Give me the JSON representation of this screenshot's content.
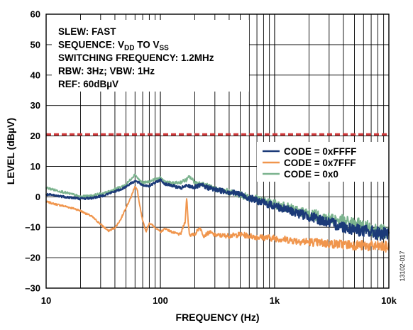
{
  "chart_data": {
    "type": "line",
    "xlabel": "FREQUENCY (Hz)",
    "ylabel": "LEVEL (dBµV)",
    "x_scale": "log",
    "xlim": [
      10,
      10000
    ],
    "ylim": [
      -30,
      60
    ],
    "x_ticks": [
      {
        "value": 10,
        "label": "10"
      },
      {
        "value": 100,
        "label": "100"
      },
      {
        "value": 1000,
        "label": "1k"
      },
      {
        "value": 10000,
        "label": "10k"
      }
    ],
    "y_ticks": [
      {
        "value": 60,
        "label": "60"
      },
      {
        "value": 50,
        "label": "50"
      },
      {
        "value": 40,
        "label": "40"
      },
      {
        "value": 30,
        "label": "30"
      },
      {
        "value": 20,
        "label": "20"
      },
      {
        "value": 10,
        "label": "10"
      },
      {
        "value": 0,
        "label": "0"
      },
      {
        "value": -10,
        "label": "–10"
      },
      {
        "value": -20,
        "label": "–20"
      },
      {
        "value": -30,
        "label": "–30"
      }
    ],
    "grid": true,
    "legend": "right, inside plot",
    "annotation": {
      "lines": [
        {
          "parts": [
            {
              "t": "SLEW: FAST"
            }
          ]
        },
        {
          "parts": [
            {
              "t": "SEQUENCE: V"
            },
            {
              "t": "DD",
              "sub": true
            },
            {
              "t": " TO V"
            },
            {
              "t": "SS",
              "sub": true
            }
          ]
        },
        {
          "parts": [
            {
              "t": "SWITCHING FREQUENCY: 1.2MHz"
            }
          ]
        },
        {
          "parts": [
            {
              "t": "RBW: 3Hz; VBW: 1Hz"
            }
          ]
        },
        {
          "parts": [
            {
              "t": "REF: 60dBµV"
            }
          ]
        }
      ]
    },
    "limit_line": {
      "y": 20.5,
      "color": "#d03a3c",
      "style": "dashed"
    },
    "figure_id": "13102-017",
    "series": [
      {
        "name": "CODE = 0xFFFF",
        "color": "#1b3a78",
        "noise": 1.2,
        "points": [
          [
            10,
            0.8
          ],
          [
            12,
            0.4
          ],
          [
            14,
            0.1
          ],
          [
            17,
            -0.3
          ],
          [
            20,
            -0.6
          ],
          [
            25,
            -0.4
          ],
          [
            30,
            0.2
          ],
          [
            35,
            1
          ],
          [
            40,
            1.8
          ],
          [
            45,
            2.4
          ],
          [
            50,
            3.4
          ],
          [
            55,
            4.4
          ],
          [
            60,
            5.2
          ],
          [
            65,
            4.6
          ],
          [
            70,
            3.8
          ],
          [
            80,
            3.6
          ],
          [
            90,
            4.6
          ],
          [
            100,
            5.6
          ],
          [
            110,
            4.2
          ],
          [
            130,
            3.6
          ],
          [
            150,
            2.8
          ],
          [
            170,
            3.6
          ],
          [
            200,
            3.2
          ],
          [
            230,
            3.8
          ],
          [
            260,
            3
          ],
          [
            300,
            2.4
          ],
          [
            400,
            1.6
          ],
          [
            500,
            0.8
          ],
          [
            600,
            -0.4
          ],
          [
            700,
            -1.2
          ],
          [
            800,
            -2
          ],
          [
            1000,
            -3
          ],
          [
            1200,
            -4
          ],
          [
            1500,
            -5
          ],
          [
            2000,
            -6.5
          ],
          [
            2500,
            -7.5
          ],
          [
            3000,
            -8.5
          ],
          [
            4000,
            -9.8
          ],
          [
            5000,
            -10.6
          ],
          [
            6000,
            -11.2
          ],
          [
            7000,
            -11.6
          ],
          [
            8000,
            -12
          ],
          [
            9000,
            -12.4
          ],
          [
            10000,
            -12.6
          ]
        ]
      },
      {
        "name": "CODE = 0x7FFF",
        "color": "#f0954c",
        "noise": 1.0,
        "points": [
          [
            10,
            -1.6
          ],
          [
            12,
            -2.4
          ],
          [
            15,
            -3.2
          ],
          [
            18,
            -4
          ],
          [
            20,
            -4.6
          ],
          [
            25,
            -6.4
          ],
          [
            30,
            -9
          ],
          [
            35,
            -11.2
          ],
          [
            40,
            -10.2
          ],
          [
            45,
            -7.4
          ],
          [
            50,
            -3.5
          ],
          [
            55,
            -0.4
          ],
          [
            60,
            3.6
          ],
          [
            63,
            2
          ],
          [
            66,
            -3
          ],
          [
            70,
            -8
          ],
          [
            75,
            -11.4
          ],
          [
            80,
            -8.6
          ],
          [
            90,
            -10
          ],
          [
            100,
            -11.6
          ],
          [
            110,
            -10.4
          ],
          [
            130,
            -11.8
          ],
          [
            150,
            -12.4
          ],
          [
            165,
            -8
          ],
          [
            170,
            0
          ],
          [
            175,
            -8
          ],
          [
            180,
            -12.6
          ],
          [
            200,
            -12.4
          ],
          [
            220,
            -10
          ],
          [
            240,
            -12.8
          ],
          [
            270,
            -11.6
          ],
          [
            300,
            -12.6
          ],
          [
            400,
            -12.8
          ],
          [
            500,
            -12.4
          ],
          [
            700,
            -13.2
          ],
          [
            1000,
            -13.6
          ],
          [
            1500,
            -14.4
          ],
          [
            2000,
            -14.8
          ],
          [
            3000,
            -15.4
          ],
          [
            5000,
            -15.8
          ],
          [
            7000,
            -16.2
          ],
          [
            10000,
            -16.6
          ]
        ]
      },
      {
        "name": "CODE = 0x0",
        "color": "#7bb38e",
        "noise": 1.3,
        "points": [
          [
            10,
            3
          ],
          [
            12,
            2.2
          ],
          [
            14,
            1.6
          ],
          [
            17,
            0.8
          ],
          [
            20,
            0
          ],
          [
            25,
            0.4
          ],
          [
            30,
            1
          ],
          [
            35,
            1.6
          ],
          [
            40,
            2.6
          ],
          [
            45,
            3.2
          ],
          [
            50,
            4
          ],
          [
            55,
            5.8
          ],
          [
            60,
            7.4
          ],
          [
            65,
            5.6
          ],
          [
            70,
            4.6
          ],
          [
            80,
            5
          ],
          [
            90,
            5.8
          ],
          [
            100,
            6.2
          ],
          [
            110,
            5
          ],
          [
            130,
            4.4
          ],
          [
            150,
            4.8
          ],
          [
            170,
            5.6
          ],
          [
            180,
            6.6
          ],
          [
            200,
            4.8
          ],
          [
            250,
            3.8
          ],
          [
            300,
            2.6
          ],
          [
            400,
            1.6
          ],
          [
            500,
            0.6
          ],
          [
            700,
            -0.8
          ],
          [
            1000,
            -2.4
          ],
          [
            1500,
            -4.2
          ],
          [
            2000,
            -5.6
          ],
          [
            3000,
            -7
          ],
          [
            4000,
            -8
          ],
          [
            5000,
            -8.8
          ],
          [
            6000,
            -9.6
          ],
          [
            7000,
            -10.4
          ],
          [
            8000,
            -11
          ],
          [
            10000,
            -11.8
          ]
        ]
      }
    ]
  }
}
